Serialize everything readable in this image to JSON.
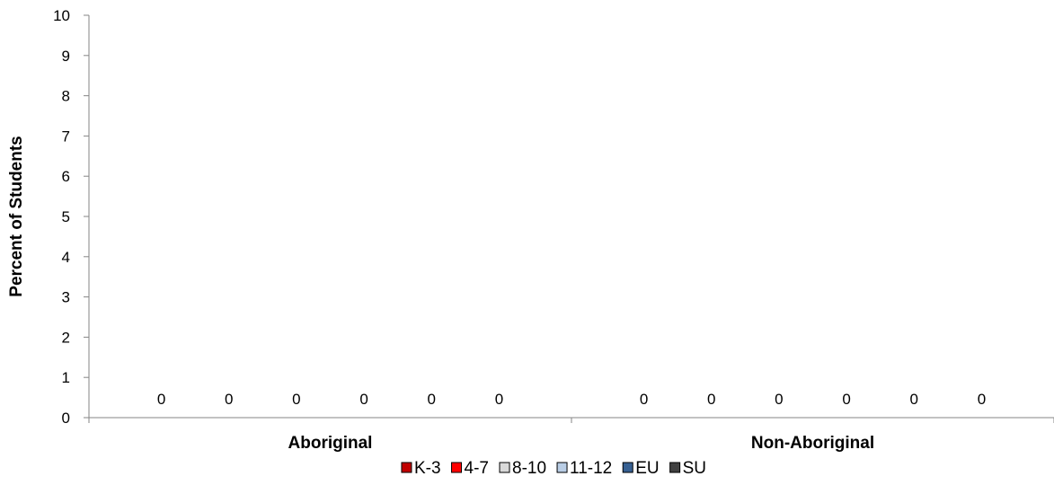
{
  "chart_data": {
    "type": "bar",
    "title": "",
    "xlabel": "",
    "ylabel": "Percent of Students",
    "ylim": [
      0,
      10
    ],
    "yticks": [
      0,
      1,
      2,
      3,
      4,
      5,
      6,
      7,
      8,
      9,
      10
    ],
    "categories": [
      "Aboriginal",
      "Non-Aboriginal"
    ],
    "legend_position": "bottom",
    "grid": false,
    "series": [
      {
        "name": "K-3",
        "color": "#c00000",
        "values": [
          0,
          0
        ]
      },
      {
        "name": "4-7",
        "color": "#ff0000",
        "values": [
          0,
          0
        ]
      },
      {
        "name": "8-10",
        "color": "#d9d9d9",
        "values": [
          0,
          0
        ]
      },
      {
        "name": "11-12",
        "color": "#b9cde5",
        "values": [
          0,
          0
        ]
      },
      {
        "name": "EU",
        "color": "#376092",
        "values": [
          0,
          0
        ]
      },
      {
        "name": "SU",
        "color": "#404040",
        "values": [
          0,
          0
        ]
      }
    ]
  }
}
